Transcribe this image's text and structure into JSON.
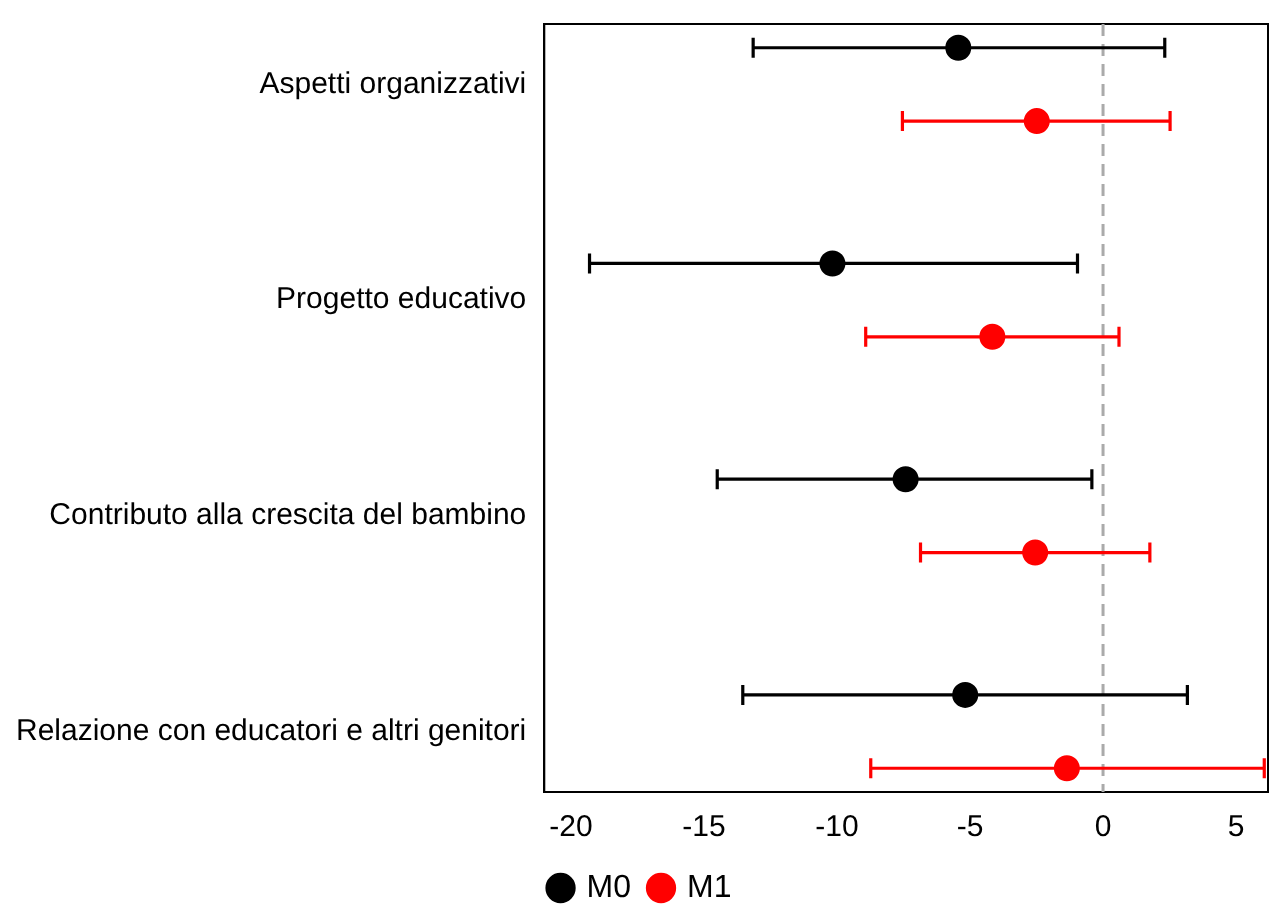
{
  "chart_data": {
    "type": "scatter",
    "orientation": "horizontal",
    "categories": [
      "Aspetti organizzativi",
      "Progetto educativo",
      "Contributo alla crescita del bambino",
      "Relazione con educatori e altri genitori"
    ],
    "series": [
      {
        "name": "M0",
        "color": "#000000",
        "values": [
          -5.44,
          -10.17,
          -7.42,
          -5.18
        ],
        "errors": [
          [
            -13.15,
            2.32
          ],
          [
            -19.3,
            -0.96
          ],
          [
            -14.5,
            -0.42
          ],
          [
            -13.54,
            3.17
          ]
        ]
      },
      {
        "name": "M1",
        "color": "#ff0000",
        "values": [
          -2.49,
          -4.16,
          -2.55,
          -1.36
        ],
        "errors": [
          [
            -7.54,
            2.52
          ],
          [
            -8.92,
            0.6
          ],
          [
            -6.86,
            1.76
          ],
          [
            -8.73,
            6.06
          ]
        ]
      }
    ],
    "xlim": [
      -21,
      6.2
    ],
    "xticks": [
      -20,
      -15,
      -10,
      -5,
      0,
      5
    ],
    "ref_lines": [
      {
        "axis": "x",
        "value": 0,
        "color": "#aaaaaa",
        "line_style": "dashed"
      }
    ],
    "marker": "circle",
    "grid": false,
    "legend": "bottom"
  }
}
